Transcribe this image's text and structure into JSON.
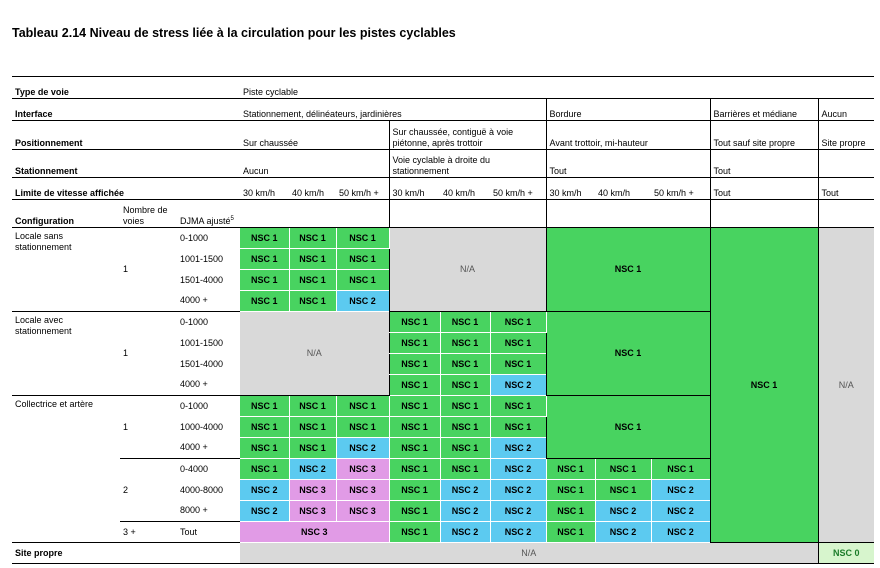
{
  "title": "Tableau 2.14 Niveau de stress liée à la circulation pour les pistes cyclables",
  "header": {
    "type_label": "Type de voie",
    "type_value": "Piste cyclable",
    "interface_label": "Interface",
    "interface_values": [
      "Stationnement, délinéateurs, jardinières",
      "Bordure",
      "Barrières et médiane",
      "Aucun"
    ],
    "position_label": "Positionnement",
    "position_values": [
      "Sur chaussée",
      "Sur chaussée, contiguë à voie piétonne, après trottoir",
      "Avant trottoir, mi-hauteur",
      "Tout sauf site propre",
      "Site propre"
    ],
    "parking_label": "Stationnement",
    "parking_values": [
      "Aucun",
      "Voie cyclable à droite du stationnement",
      "Tout",
      "Tout"
    ],
    "speed_label": "Limite de vitesse affichée",
    "speeds": [
      "30 km/h",
      "40 km/h",
      "50 km/h +"
    ],
    "speed_tout": "Tout",
    "config_label": "Configuration",
    "lanes_label": "Nombre de voies",
    "djma_label": "DJMA ajusté",
    "djma_sup": "5"
  },
  "groups": {
    "locale_sans": "Locale sans stationnement",
    "locale_avec": "Locale avec stationnement",
    "collectrice": "Collectrice et artère",
    "site_propre": "Site propre"
  },
  "lanes": {
    "one": "1",
    "two": "2",
    "three": "3 +"
  },
  "djma": {
    "r1": "0-1000",
    "r2": "1001-1500",
    "r3": "1501-4000",
    "r4": "4000 +",
    "r5": "0-1000",
    "r6": "1001-1500",
    "r7": "1501-4000",
    "r8": "4000 +",
    "r9": "0-1000",
    "r10": "1000-4000",
    "r11": "4000 +",
    "r12": "0-4000",
    "r13": "4000-8000",
    "r14": "8000 +",
    "r15": "Tout"
  },
  "levels": {
    "nsc0": "NSC 0",
    "nsc1": "NSC 1",
    "nsc2": "NSC 2",
    "nsc3": "NSC 3",
    "na": "N/A"
  },
  "colors": {
    "nsc1": "#48d360",
    "nsc2": "#5ccaf0",
    "nsc3": "#e19be6",
    "na": "#d9d9d9",
    "nsc0": "#d7f5cd"
  }
}
